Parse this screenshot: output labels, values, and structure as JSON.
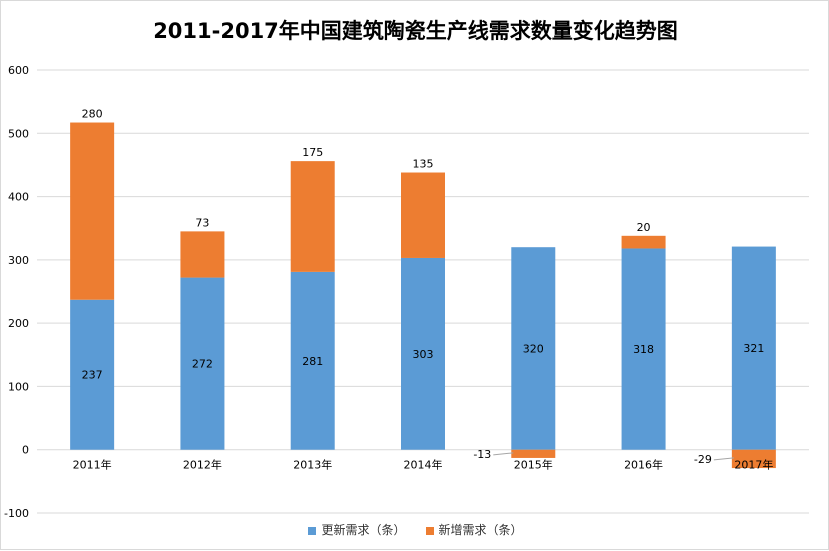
{
  "chart_data": {
    "type": "bar",
    "stacked": true,
    "title": "2011-2017年中国建筑陶瓷生产线需求数量变化趋势图",
    "categories": [
      "2011年",
      "2012年",
      "2013年",
      "2014年",
      "2015年",
      "2016年",
      "2017年"
    ],
    "series": [
      {
        "name": "更新需求（条）",
        "color": "#5b9bd5",
        "values": [
          237,
          272,
          281,
          303,
          320,
          318,
          321
        ]
      },
      {
        "name": "新增需求（条）",
        "color": "#ed7d31",
        "values": [
          280,
          73,
          175,
          135,
          -13,
          20,
          -29
        ]
      }
    ],
    "ylim": [
      -100,
      600
    ],
    "yticks": [
      -100,
      0,
      100,
      200,
      300,
      400,
      500,
      600
    ],
    "grid": true,
    "legend_position": "bottom"
  }
}
